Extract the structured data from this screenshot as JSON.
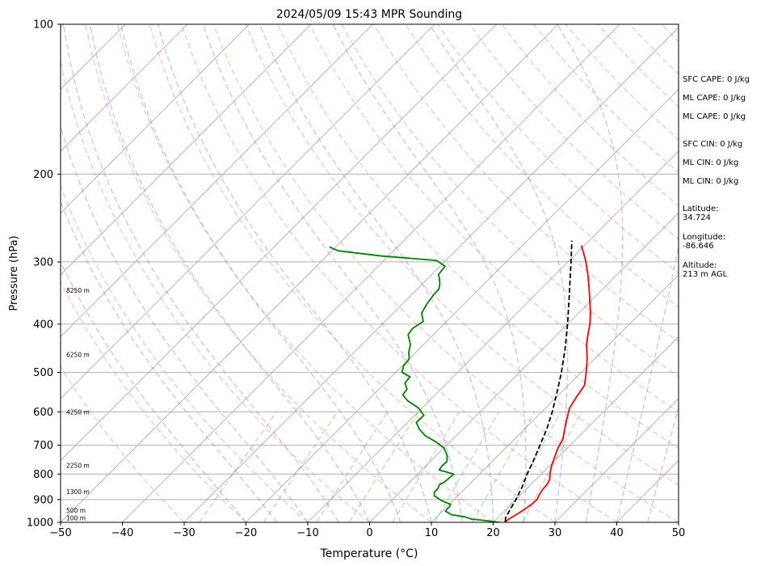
{
  "chart_data": {
    "type": "line",
    "title": "2024/05/09 15:43 MPR Sounding",
    "xlabel": "Temperature (°C)",
    "ylabel": "Pressure (hPa)",
    "xlim": [
      -50,
      50
    ],
    "ylim": [
      1000,
      100
    ],
    "yscale": "log",
    "skew": "skew-T",
    "xticks": [
      "−50",
      "−40",
      "−30",
      "−20",
      "−10",
      "0",
      "10",
      "20",
      "30",
      "40",
      "50"
    ],
    "yticks": [
      "100",
      "200",
      "300",
      "400",
      "500",
      "600",
      "700",
      "800",
      "900",
      "1000"
    ],
    "grid": true,
    "height_labels": [
      {
        "p": 980,
        "text": "100 m"
      },
      {
        "p": 945,
        "text": "500 m"
      },
      {
        "p": 868,
        "text": "1300 m"
      },
      {
        "p": 768,
        "text": "2250 m"
      },
      {
        "p": 600,
        "text": "4250 m"
      },
      {
        "p": 460,
        "text": "6250 m"
      },
      {
        "p": 342,
        "text": "8250 m"
      }
    ],
    "series": [
      {
        "color": "#ff0000",
        "points": [
          [
            1000,
            21.8
          ],
          [
            985,
            22.0
          ],
          [
            960,
            22.6
          ],
          [
            940,
            23.0
          ],
          [
            920,
            23.3
          ],
          [
            900,
            23.4
          ],
          [
            880,
            23.0
          ],
          [
            860,
            22.7
          ],
          [
            840,
            22.6
          ],
          [
            820,
            22.2
          ],
          [
            800,
            21.4
          ],
          [
            770,
            20.3
          ],
          [
            740,
            19.4
          ],
          [
            710,
            18.5
          ],
          [
            680,
            17.8
          ],
          [
            650,
            16.5
          ],
          [
            620,
            15.2
          ],
          [
            590,
            13.9
          ],
          [
            560,
            13.2
          ],
          [
            530,
            12.6
          ],
          [
            500,
            10.8
          ],
          [
            470,
            8.8
          ],
          [
            440,
            6.4
          ],
          [
            420,
            5.0
          ],
          [
            400,
            3.6
          ],
          [
            380,
            1.9
          ],
          [
            360,
            -0.1
          ],
          [
            340,
            -2.2
          ],
          [
            320,
            -4.5
          ],
          [
            300,
            -7.1
          ],
          [
            290,
            -8.6
          ],
          [
            278,
            -10.5
          ]
        ]
      },
      {
        "color": "#008000",
        "points": [
          [
            1000,
            21.0
          ],
          [
            992,
            18.5
          ],
          [
            985,
            16.0
          ],
          [
            975,
            14.5
          ],
          [
            965,
            12.0
          ],
          [
            955,
            11.0
          ],
          [
            950,
            10.5
          ],
          [
            940,
            10.4
          ],
          [
            930,
            10.4
          ],
          [
            920,
            10.2
          ],
          [
            905,
            8.2
          ],
          [
            885,
            6.2
          ],
          [
            870,
            5.6
          ],
          [
            855,
            5.6
          ],
          [
            840,
            5.2
          ],
          [
            830,
            5.6
          ],
          [
            800,
            5.8
          ],
          [
            785,
            2.8
          ],
          [
            770,
            2.6
          ],
          [
            755,
            2.7
          ],
          [
            735,
            1.8
          ],
          [
            710,
            0.1
          ],
          [
            690,
            -2.2
          ],
          [
            670,
            -5.0
          ],
          [
            650,
            -7.0
          ],
          [
            630,
            -8.6
          ],
          [
            610,
            -8.5
          ],
          [
            590,
            -10.5
          ],
          [
            570,
            -13.5
          ],
          [
            555,
            -15.2
          ],
          [
            540,
            -15.5
          ],
          [
            525,
            -16.8
          ],
          [
            510,
            -17.0
          ],
          [
            500,
            -19.0
          ],
          [
            485,
            -19.8
          ],
          [
            470,
            -20.0
          ],
          [
            455,
            -21.2
          ],
          [
            440,
            -22.1
          ],
          [
            420,
            -24.1
          ],
          [
            408,
            -24.4
          ],
          [
            395,
            -23.8
          ],
          [
            380,
            -25.4
          ],
          [
            365,
            -26.0
          ],
          [
            350,
            -26.4
          ],
          [
            340,
            -26.5
          ],
          [
            332,
            -27.2
          ],
          [
            325,
            -28.0
          ],
          [
            318,
            -28.9
          ],
          [
            306,
            -29.2
          ],
          [
            298,
            -31.5
          ],
          [
            292,
            -41.0
          ],
          [
            285,
            -49.0
          ],
          [
            280,
            -51.0
          ]
        ]
      },
      {
        "color": "#000000",
        "dashed": true,
        "points": [
          [
            995,
            21.8
          ],
          [
            980,
            21.3
          ],
          [
            950,
            20.8
          ],
          [
            900,
            20.0
          ],
          [
            850,
            19.0
          ],
          [
            800,
            17.7
          ],
          [
            750,
            16.5
          ],
          [
            700,
            15.1
          ],
          [
            650,
            13.6
          ],
          [
            600,
            11.7
          ],
          [
            550,
            9.4
          ],
          [
            500,
            6.8
          ],
          [
            450,
            3.7
          ],
          [
            400,
            0.0
          ],
          [
            350,
            -4.4
          ],
          [
            300,
            -9.5
          ],
          [
            272,
            -12.8
          ]
        ]
      }
    ]
  },
  "side_panel": {
    "sfc_cape": "SFC CAPE: 0 J/kg",
    "ml_cape_1": "ML CAPE: 0 J/kg",
    "ml_cape_2": "ML CAPE: 0 J/kg",
    "sfc_cin": "SFC CIN: 0 J/kg",
    "ml_cin_1": "ML CIN: 0 J/kg",
    "ml_cin_2": "ML CIN: 0 J/kg",
    "latitude_label": "Latitude:",
    "latitude": "34.724",
    "longitude_label": "Longitude:",
    "longitude": "-86.646",
    "altitude_label": "Altitude:",
    "altitude": "213 m AGL"
  }
}
